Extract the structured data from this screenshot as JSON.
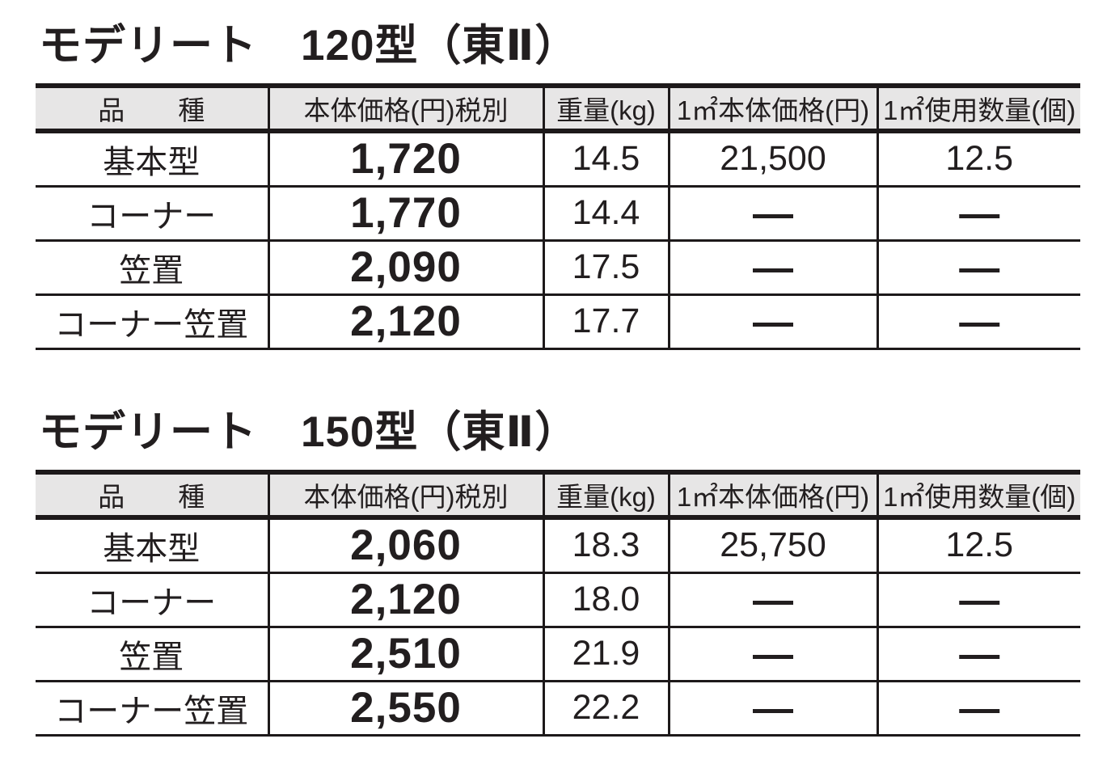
{
  "page": {
    "background": "#ffffff",
    "text_color": "#221e1f",
    "border_color": "#1d191a",
    "header_background": "#e7e6e6",
    "dash_symbol": "—"
  },
  "tables": [
    {
      "title": "モデリート　120型（東Ⅱ）",
      "columns": [
        "品　　種",
        "本体価格(円)税別",
        "重量(kg)",
        "1㎡本体価格(円)",
        "1㎡使用数量(個)"
      ],
      "rows": [
        {
          "name": "基本型",
          "price": "1,720",
          "weight": "14.5",
          "price_per_sqm": "21,500",
          "qty_per_sqm": "12.5"
        },
        {
          "name": "コーナー",
          "price": "1,770",
          "weight": "14.4",
          "price_per_sqm": "—",
          "qty_per_sqm": "—"
        },
        {
          "name": "笠置",
          "price": "2,090",
          "weight": "17.5",
          "price_per_sqm": "—",
          "qty_per_sqm": "—"
        },
        {
          "name": "コーナー笠置",
          "price": "2,120",
          "weight": "17.7",
          "price_per_sqm": "—",
          "qty_per_sqm": "—"
        }
      ]
    },
    {
      "title": "モデリート　150型（東Ⅱ）",
      "columns": [
        "品　　種",
        "本体価格(円)税別",
        "重量(kg)",
        "1㎡本体価格(円)",
        "1㎡使用数量(個)"
      ],
      "rows": [
        {
          "name": "基本型",
          "price": "2,060",
          "weight": "18.3",
          "price_per_sqm": "25,750",
          "qty_per_sqm": "12.5"
        },
        {
          "name": "コーナー",
          "price": "2,120",
          "weight": "18.0",
          "price_per_sqm": "—",
          "qty_per_sqm": "—"
        },
        {
          "name": "笠置",
          "price": "2,510",
          "weight": "21.9",
          "price_per_sqm": "—",
          "qty_per_sqm": "—"
        },
        {
          "name": "コーナー笠置",
          "price": "2,550",
          "weight": "22.2",
          "price_per_sqm": "—",
          "qty_per_sqm": "—"
        }
      ]
    }
  ]
}
